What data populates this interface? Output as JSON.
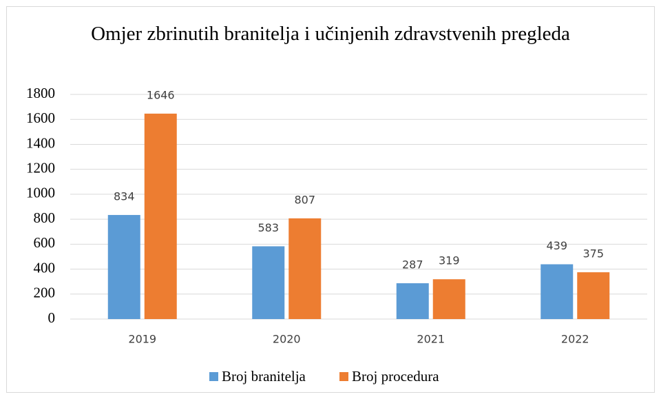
{
  "chart_data": {
    "type": "bar",
    "title": "Omjer zbrinutih branitelja i učinjenih zdravstvenih pregleda",
    "categories": [
      "2019",
      "2020",
      "2021",
      "2022"
    ],
    "series": [
      {
        "name": "Broj branitelja",
        "color": "#5b9bd5",
        "values": [
          834,
          583,
          287,
          439
        ]
      },
      {
        "name": "Broj procedura",
        "color": "#ed7d31",
        "values": [
          1646,
          807,
          319,
          375
        ]
      }
    ],
    "ylim": [
      0,
      1800
    ],
    "yticks": [
      0,
      200,
      400,
      600,
      800,
      1000,
      1200,
      1400,
      1600,
      1800
    ],
    "grid": true,
    "legend": "bottom"
  }
}
